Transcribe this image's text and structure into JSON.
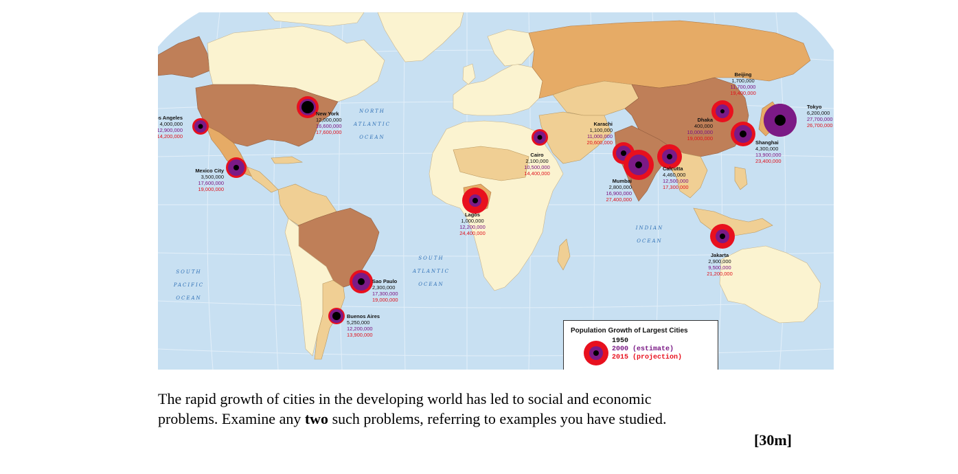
{
  "map": {
    "cities": [
      {
        "name": "Los Angeles",
        "pop_1950": "4,000,000",
        "pop_2000": "12,900,000",
        "pop_2015": "14,200,000"
      },
      {
        "name": "New York",
        "pop_1950": "12,000,000",
        "pop_2000": "16,600,000",
        "pop_2015": "17,600,000"
      },
      {
        "name": "Mexico City",
        "pop_1950": "3,500,000",
        "pop_2000": "17,600,000",
        "pop_2015": "19,000,000"
      },
      {
        "name": "Sao Paulo",
        "pop_1950": "2,300,000",
        "pop_2000": "17,300,000",
        "pop_2015": "19,000,000"
      },
      {
        "name": "Buenos Aires",
        "pop_1950": "5,250,000",
        "pop_2000": "12,200,000",
        "pop_2015": "13,900,000"
      },
      {
        "name": "Lagos",
        "pop_1950": "1,000,000",
        "pop_2000": "12,200,000",
        "pop_2015": "24,400,000"
      },
      {
        "name": "Cairo",
        "pop_1950": "2,100,000",
        "pop_2000": "10,500,000",
        "pop_2015": "14,400,000"
      },
      {
        "name": "Karachi",
        "pop_1950": "1,100,000",
        "pop_2000": "11,000,000",
        "pop_2015": "20,600,000"
      },
      {
        "name": "Mumbai",
        "pop_1950": "2,800,000",
        "pop_2000": "16,900,000",
        "pop_2015": "27,400,000"
      },
      {
        "name": "Calcutta",
        "pop_1950": "4,460,000",
        "pop_2000": "12,500,000",
        "pop_2015": "17,300,000"
      },
      {
        "name": "Dhaka",
        "pop_1950": "400,000",
        "pop_2000": "10,000,000",
        "pop_2015": "19,000,000"
      },
      {
        "name": "Beijing",
        "pop_1950": "1,700,000",
        "pop_2000": "11,700,000",
        "pop_2015": "19,400,000"
      },
      {
        "name": "Shanghai",
        "pop_1950": "4,300,000",
        "pop_2000": "13,900,000",
        "pop_2015": "23,400,000"
      },
      {
        "name": "Tokyo",
        "pop_1950": "6,200,000",
        "pop_2000": "27,700,000",
        "pop_2015": "26,700,000"
      },
      {
        "name": "Jakarta",
        "pop_1950": "2,900,000",
        "pop_2000": "9,500,000",
        "pop_2015": "21,200,000"
      }
    ],
    "oceans": [
      {
        "lines": [
          "NORTH",
          "ATLANTIC",
          "OCEAN"
        ]
      },
      {
        "lines": [
          "SOUTH",
          "PACIFIC",
          "OCEAN"
        ]
      },
      {
        "lines": [
          "SOUTH",
          "ATLANTIC",
          "OCEAN"
        ]
      },
      {
        "lines": [
          "INDIAN",
          "OCEAN"
        ]
      }
    ],
    "legend": {
      "title": "Population Growth of Largest Cities",
      "item_1950": "1950",
      "item_2000": "2000 (estimate)",
      "item_2015": "2015 (projection)"
    },
    "colors": {
      "ocean": "#c8e0f2",
      "land_light": "#fbf3d0",
      "land_mid": "#f0cf94",
      "land_orange": "#e6ab66",
      "land_dark": "#bf7f58",
      "ring_2015": "#e8101e",
      "ring_2000": "#7b1a86",
      "dot_1950": "#000000"
    }
  },
  "question": {
    "line1": "The rapid growth of cities in the developing world has led to social and economic",
    "line2_before": "problems. Examine any ",
    "line2_bold": "two",
    "line2_after": " such problems, referring to examples you have studied.",
    "marks": "[30m]"
  }
}
